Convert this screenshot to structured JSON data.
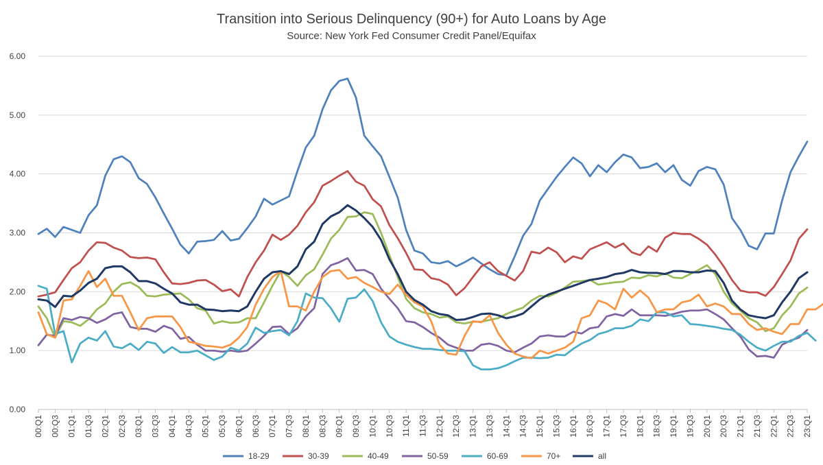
{
  "chart_data": {
    "type": "line",
    "title": "Transition into Serious Delinquency (90+) for Auto Loans by Age",
    "subtitle": "Source: New York Fed Consumer Credit Panel/Equifax",
    "xlabel": "",
    "ylabel": "",
    "ylim": [
      0,
      6
    ],
    "y_ticks": [
      "0.00",
      "1.00",
      "2.00",
      "3.00",
      "4.00",
      "5.00",
      "6.00"
    ],
    "grid": true,
    "legend_position": "bottom",
    "x_labels": [
      "00:Q1",
      "00:Q3",
      "01:Q1",
      "01:Q3",
      "02:Q1",
      "02:Q3",
      "03:Q1",
      "03:Q3",
      "04:Q1",
      "04:Q3",
      "05:Q1",
      "05:Q3",
      "06:Q1",
      "06:Q3",
      "07:Q1",
      "07:Q3",
      "08:Q1",
      "08:Q3",
      "09:Q1",
      "09:Q3",
      "10:Q1",
      "10:Q3",
      "11:Q1",
      "11:Q3",
      "12:Q1",
      "12:Q3",
      "13:Q1",
      "13:Q3",
      "14:Q1",
      "14:Q3",
      "15:Q1",
      "15:Q3",
      "16:Q1",
      "16:Q3",
      "17:Q1",
      "17:Q3",
      "18:Q1",
      "18:Q3",
      "19:Q1",
      "19:Q3",
      "20:Q1",
      "20:Q3",
      "21:Q1",
      "21:Q3",
      "22:Q1",
      "22:Q3",
      "23:Q1"
    ],
    "series": [
      {
        "name": "18-29",
        "color": "#4f81bd",
        "values": [
          2.98,
          3.07,
          2.93,
          3.1,
          3.05,
          3.0,
          3.3,
          3.47,
          3.97,
          4.25,
          4.3,
          4.2,
          3.93,
          3.83,
          3.6,
          3.33,
          3.07,
          2.8,
          2.65,
          2.85,
          2.86,
          2.88,
          3.03,
          2.87,
          2.9,
          3.08,
          3.28,
          3.58,
          3.48,
          3.55,
          3.62,
          4.05,
          4.45,
          4.65,
          5.1,
          5.42,
          5.58,
          5.62,
          5.3,
          4.65,
          4.47,
          4.3,
          3.95,
          3.6,
          3.05,
          2.7,
          2.65,
          2.5,
          2.48,
          2.52,
          2.43,
          2.5,
          2.58,
          2.48,
          2.38,
          2.3,
          2.28,
          2.6,
          2.95,
          3.15,
          3.55,
          3.75,
          3.95,
          4.12,
          4.28,
          4.18,
          3.96,
          4.15,
          4.03,
          4.2,
          4.33,
          4.28,
          4.1,
          4.12,
          4.18,
          4.03,
          4.15,
          3.9,
          3.8,
          4.05,
          4.12,
          4.08,
          3.82,
          3.25,
          3.05,
          2.78,
          2.72,
          2.99,
          2.99,
          3.55,
          4.03,
          4.3,
          4.55
        ]
      },
      {
        "name": "30-39",
        "color": "#c0504d",
        "values": [
          1.92,
          1.95,
          1.99,
          2.2,
          2.4,
          2.5,
          2.7,
          2.84,
          2.83,
          2.75,
          2.7,
          2.59,
          2.57,
          2.58,
          2.55,
          2.33,
          2.14,
          2.13,
          2.15,
          2.19,
          2.2,
          2.12,
          2.01,
          2.04,
          1.92,
          2.25,
          2.5,
          2.7,
          2.97,
          2.88,
          2.97,
          3.12,
          3.35,
          3.52,
          3.8,
          3.88,
          3.97,
          4.05,
          3.87,
          3.8,
          3.57,
          3.45,
          3.13,
          2.91,
          2.66,
          2.38,
          2.37,
          2.23,
          2.2,
          2.12,
          1.94,
          2.06,
          2.25,
          2.43,
          2.5,
          2.35,
          2.27,
          2.19,
          2.35,
          2.68,
          2.65,
          2.75,
          2.67,
          2.5,
          2.6,
          2.56,
          2.72,
          2.78,
          2.84,
          2.75,
          2.82,
          2.67,
          2.62,
          2.77,
          2.68,
          2.92,
          3.0,
          2.98,
          2.98,
          2.9,
          2.8,
          2.63,
          2.43,
          2.2,
          2.02,
          1.99,
          1.99,
          1.93,
          2.08,
          2.3,
          2.53,
          2.9,
          3.06
        ]
      },
      {
        "name": "40-49",
        "color": "#9bbb59",
        "values": [
          1.75,
          1.55,
          1.22,
          1.5,
          1.48,
          1.42,
          1.53,
          1.7,
          1.8,
          2.0,
          2.13,
          2.16,
          2.08,
          1.93,
          1.92,
          1.95,
          1.96,
          1.97,
          1.87,
          1.72,
          1.68,
          1.46,
          1.5,
          1.47,
          1.48,
          1.55,
          1.55,
          1.82,
          2.1,
          2.35,
          2.25,
          2.1,
          2.28,
          2.38,
          2.63,
          2.9,
          3.05,
          3.27,
          3.28,
          3.35,
          3.32,
          3.0,
          2.62,
          2.25,
          1.88,
          1.72,
          1.65,
          1.62,
          1.56,
          1.58,
          1.48,
          1.46,
          1.49,
          1.49,
          1.52,
          1.55,
          1.62,
          1.68,
          1.73,
          1.85,
          1.93,
          1.92,
          1.98,
          2.07,
          2.17,
          2.18,
          2.2,
          2.12,
          2.14,
          2.16,
          2.17,
          2.24,
          2.23,
          2.28,
          2.26,
          2.31,
          2.24,
          2.23,
          2.3,
          2.37,
          2.45,
          2.3,
          2.0,
          1.8,
          1.68,
          1.55,
          1.48,
          1.33,
          1.38,
          1.6,
          1.75,
          1.97,
          2.07
        ]
      },
      {
        "name": "50-59",
        "color": "#8064a2",
        "values": [
          1.09,
          1.27,
          1.25,
          1.55,
          1.52,
          1.57,
          1.55,
          1.47,
          1.53,
          1.62,
          1.65,
          1.4,
          1.37,
          1.37,
          1.32,
          1.42,
          1.37,
          1.2,
          1.23,
          1.1,
          1.0,
          1.0,
          0.98,
          1.0,
          0.98,
          1.0,
          1.12,
          1.25,
          1.4,
          1.41,
          1.28,
          1.38,
          1.58,
          1.72,
          2.3,
          2.45,
          2.5,
          2.57,
          2.36,
          2.37,
          2.3,
          2.05,
          1.88,
          1.72,
          1.5,
          1.48,
          1.4,
          1.3,
          1.22,
          1.1,
          1.05,
          1.0,
          1.0,
          1.1,
          1.12,
          1.08,
          1.0,
          0.97,
          1.05,
          1.12,
          1.24,
          1.26,
          1.24,
          1.24,
          1.32,
          1.29,
          1.38,
          1.4,
          1.58,
          1.62,
          1.59,
          1.7,
          1.6,
          1.6,
          1.6,
          1.59,
          1.62,
          1.66,
          1.68,
          1.68,
          1.7,
          1.62,
          1.53,
          1.38,
          1.24,
          1.02,
          0.9,
          0.91,
          0.88,
          1.1,
          1.17,
          1.22,
          1.35
        ]
      },
      {
        "name": "60-69",
        "color": "#4bacc6",
        "values": [
          2.1,
          2.05,
          1.28,
          1.33,
          0.8,
          1.12,
          1.22,
          1.17,
          1.33,
          1.07,
          1.04,
          1.12,
          1.01,
          1.15,
          1.12,
          0.96,
          1.06,
          0.97,
          0.97,
          1.0,
          0.92,
          0.84,
          0.9,
          1.05,
          1.0,
          1.12,
          1.39,
          1.3,
          1.33,
          1.35,
          1.26,
          1.5,
          1.97,
          1.9,
          1.89,
          1.72,
          1.49,
          1.88,
          1.9,
          2.04,
          1.84,
          1.48,
          1.24,
          1.15,
          1.1,
          1.06,
          1.03,
          1.03,
          1.01,
          1.0,
          1.0,
          0.99,
          0.75,
          0.68,
          0.68,
          0.7,
          0.75,
          0.82,
          0.88,
          0.88,
          0.87,
          0.88,
          0.93,
          0.92,
          1.03,
          1.12,
          1.18,
          1.28,
          1.32,
          1.38,
          1.38,
          1.42,
          1.53,
          1.5,
          1.65,
          1.65,
          1.58,
          1.6,
          1.45,
          1.44,
          1.42,
          1.4,
          1.37,
          1.35,
          1.27,
          1.15,
          1.05,
          1.0,
          1.08,
          1.15,
          1.15,
          1.25,
          1.3,
          1.17
        ]
      },
      {
        "name": "70+",
        "color": "#f79646",
        "values": [
          1.65,
          1.28,
          1.22,
          1.85,
          1.87,
          2.1,
          2.35,
          2.08,
          2.22,
          1.93,
          1.93,
          1.65,
          1.35,
          1.55,
          1.58,
          1.58,
          1.58,
          1.4,
          1.15,
          1.12,
          1.08,
          1.07,
          1.05,
          1.1,
          1.22,
          1.4,
          1.78,
          2.05,
          2.25,
          2.35,
          1.75,
          1.75,
          1.68,
          2.0,
          2.25,
          2.35,
          2.37,
          2.22,
          2.25,
          2.15,
          2.08,
          2.0,
          1.96,
          2.12,
          1.95,
          1.82,
          1.75,
          1.5,
          1.1,
          0.95,
          0.93,
          1.25,
          1.5,
          1.48,
          1.6,
          1.3,
          1.1,
          0.95,
          0.9,
          0.87,
          1.0,
          0.95,
          1.0,
          1.05,
          1.15,
          1.55,
          1.6,
          1.85,
          1.8,
          1.7,
          2.05,
          1.9,
          2.02,
          1.9,
          1.65,
          1.7,
          1.7,
          1.82,
          1.85,
          1.95,
          1.75,
          1.8,
          1.75,
          1.62,
          1.62,
          1.45,
          1.35,
          1.38,
          1.32,
          1.28,
          1.45,
          1.45,
          1.7,
          1.7,
          1.8
        ]
      },
      {
        "name": "all",
        "color": "#1f3864",
        "values": [
          1.87,
          1.85,
          1.74,
          1.93,
          1.92,
          2.02,
          2.15,
          2.22,
          2.4,
          2.43,
          2.43,
          2.33,
          2.18,
          2.18,
          2.14,
          2.05,
          1.97,
          1.82,
          1.78,
          1.78,
          1.7,
          1.69,
          1.67,
          1.68,
          1.67,
          1.75,
          2.0,
          2.22,
          2.33,
          2.35,
          2.3,
          2.43,
          2.72,
          2.85,
          3.15,
          3.28,
          3.35,
          3.47,
          3.38,
          3.25,
          3.1,
          2.88,
          2.55,
          2.3,
          2.0,
          1.86,
          1.78,
          1.67,
          1.62,
          1.6,
          1.52,
          1.53,
          1.57,
          1.62,
          1.63,
          1.6,
          1.55,
          1.58,
          1.63,
          1.75,
          1.87,
          1.95,
          2.0,
          2.05,
          2.1,
          2.15,
          2.2,
          2.22,
          2.25,
          2.3,
          2.32,
          2.37,
          2.33,
          2.32,
          2.32,
          2.3,
          2.35,
          2.35,
          2.33,
          2.33,
          2.36,
          2.35,
          2.15,
          1.85,
          1.7,
          1.6,
          1.57,
          1.55,
          1.6,
          1.82,
          2.0,
          2.23,
          2.33
        ]
      }
    ]
  }
}
